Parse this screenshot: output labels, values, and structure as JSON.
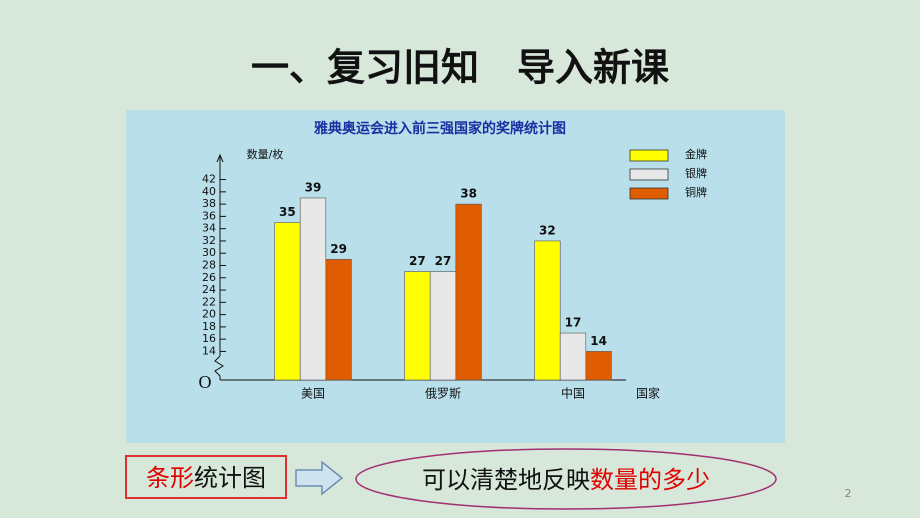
{
  "slide": {
    "title": "一、复习旧知　导入新课",
    "box_red": "条形",
    "box_black": "统计图",
    "ellipse_black": "可以清楚地反映",
    "ellipse_red": "数量的多少",
    "page_number": "2"
  },
  "chart_data": {
    "type": "bar",
    "title": "雅典奥运会进入前三强国家的奖牌统计图",
    "y_label": "数量/枚",
    "x_label": "国家",
    "origin_label": "O",
    "axis_break": true,
    "categories": [
      "美国",
      "俄罗斯",
      "中国"
    ],
    "series": [
      {
        "name": "金牌",
        "color": "#ffff00",
        "values": [
          35,
          27,
          32
        ]
      },
      {
        "name": "银牌",
        "color": "#e8e8e8",
        "values": [
          39,
          27,
          17
        ]
      },
      {
        "name": "铜牌",
        "color": "#e05c00",
        "values": [
          29,
          38,
          14
        ]
      }
    ],
    "ylim": [
      10,
      46
    ],
    "yticks": [
      14,
      16,
      18,
      20,
      22,
      24,
      26,
      28,
      30,
      32,
      34,
      36,
      38,
      40,
      42
    ],
    "legend": "top-right",
    "data_labels": true
  }
}
